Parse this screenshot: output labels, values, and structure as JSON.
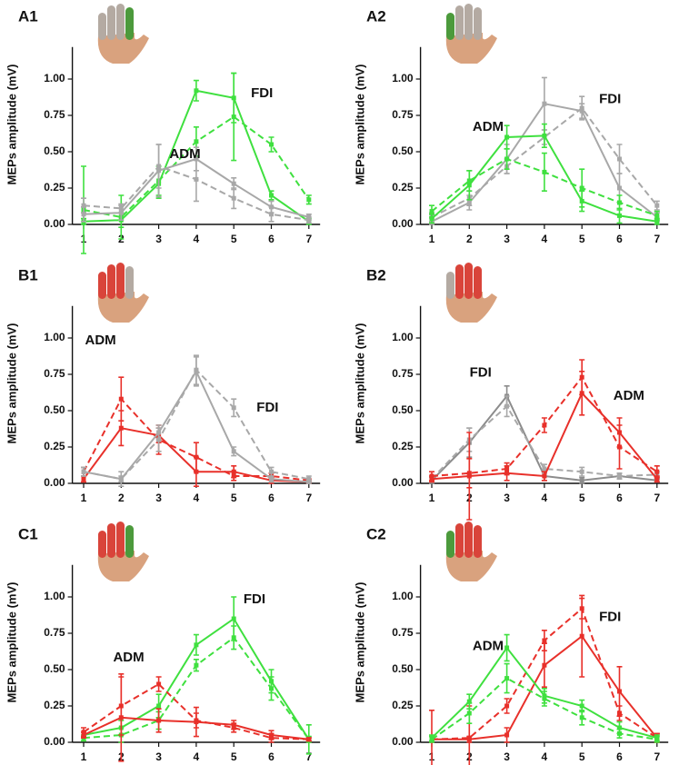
{
  "chart_data": [
    {
      "type": "line",
      "title": "A1",
      "ylabel": "MEPs amplitude (mV)",
      "x": [
        1,
        2,
        3,
        4,
        5,
        6,
        7
      ],
      "xlim": [
        0.7,
        7.3
      ],
      "xticks": [
        1,
        2,
        3,
        4,
        5,
        6,
        7
      ],
      "ylim": [
        0,
        1.22
      ],
      "yticks": [
        {
          "value": 0,
          "label": "0.00"
        },
        {
          "value": 0.25,
          "label": "0.25"
        },
        {
          "value": 0.5,
          "label": "0.50"
        },
        {
          "value": 0.75,
          "label": "0.75"
        },
        {
          "value": 1,
          "label": "1.00"
        }
      ],
      "labels": [
        {
          "text": "FDI",
          "color": "#3fe03f"
        },
        {
          "text": "ADM",
          "color": "#a8a8a8"
        }
      ],
      "series": [
        {
          "color": "#3fe03f",
          "dashed": false,
          "values": [
            0.02,
            0.03,
            0.28,
            0.92,
            0.87,
            0.2,
            0.02
          ],
          "errors": [
            0.02,
            0.05,
            0.1,
            0.07,
            0.17,
            0.03,
            0.02
          ]
        },
        {
          "color": "#3fe03f",
          "dashed": true,
          "values": [
            0.1,
            0.05,
            0.3,
            0.57,
            0.74,
            0.55,
            0.17
          ],
          "errors": [
            0.3,
            0.15,
            0.1,
            0.1,
            0.3,
            0.05,
            0.03
          ]
        },
        {
          "color": "#a8a8a8",
          "dashed": false,
          "values": [
            0.07,
            0.08,
            0.37,
            0.45,
            0.28,
            0.12,
            0.05
          ],
          "errors": [
            0.05,
            0.05,
            0.18,
            0.08,
            0.04,
            0.04,
            0.02
          ]
        },
        {
          "color": "#a8a8a8",
          "dashed": true,
          "values": [
            0.13,
            0.11,
            0.4,
            0.31,
            0.18,
            0.07,
            0.03
          ],
          "errors": [
            0.05,
            0.03,
            0.15,
            0.15,
            0.07,
            0.05,
            0.02
          ]
        }
      ]
    },
    {
      "type": "line",
      "title": "A2",
      "ylabel": "MEPs amplitude (mV)",
      "x": [
        1,
        2,
        3,
        4,
        5,
        6,
        7
      ],
      "xlim": [
        0.7,
        7.3
      ],
      "xticks": [
        1,
        2,
        3,
        4,
        5,
        6,
        7
      ],
      "ylim": [
        0,
        1.22
      ],
      "yticks": [
        {
          "value": 0,
          "label": "0.00"
        },
        {
          "value": 0.25,
          "label": "0.25"
        },
        {
          "value": 0.5,
          "label": "0.50"
        },
        {
          "value": 0.75,
          "label": "0.75"
        },
        {
          "value": 1,
          "label": "1.00"
        }
      ],
      "labels": [
        {
          "text": "FDI",
          "color": "#a8a8a8"
        },
        {
          "text": "ADM",
          "color": "#3fe03f"
        }
      ],
      "series": [
        {
          "color": "#a8a8a8",
          "dashed": false,
          "values": [
            0.02,
            0.15,
            0.45,
            0.83,
            0.78,
            0.25,
            0.05
          ],
          "errors": [
            0.02,
            0.05,
            0.1,
            0.18,
            0.05,
            0.1,
            0.03
          ]
        },
        {
          "color": "#a8a8a8",
          "dashed": true,
          "values": [
            0.05,
            0.18,
            0.4,
            0.6,
            0.8,
            0.45,
            0.13
          ],
          "errors": [
            0.03,
            0.05,
            0.05,
            0.05,
            0.08,
            0.1,
            0.03
          ]
        },
        {
          "color": "#3fe03f",
          "dashed": false,
          "values": [
            0.04,
            0.27,
            0.6,
            0.61,
            0.16,
            0.06,
            0.02
          ],
          "errors": [
            0.03,
            0.1,
            0.08,
            0.08,
            0.07,
            0.05,
            0.02
          ]
        },
        {
          "color": "#3fe03f",
          "dashed": true,
          "values": [
            0.09,
            0.3,
            0.45,
            0.36,
            0.25,
            0.15,
            0.06
          ],
          "errors": [
            0.04,
            0.07,
            0.07,
            0.13,
            0.13,
            0.05,
            0.03
          ]
        }
      ]
    },
    {
      "type": "line",
      "title": "B1",
      "ylabel": "MEPs amplitude (mV)",
      "x": [
        1,
        2,
        3,
        4,
        5,
        6,
        7
      ],
      "xlim": [
        0.7,
        7.3
      ],
      "xticks": [
        1,
        2,
        3,
        4,
        5,
        6,
        7
      ],
      "ylim": [
        0,
        1.22
      ],
      "yticks": [
        {
          "value": 0,
          "label": "0.00"
        },
        {
          "value": 0.25,
          "label": "0.25"
        },
        {
          "value": 0.5,
          "label": "0.50"
        },
        {
          "value": 0.75,
          "label": "0.75"
        },
        {
          "value": 1,
          "label": "1.00"
        }
      ],
      "labels": [
        {
          "text": "ADM",
          "color": "#e8302a"
        },
        {
          "text": "FDI",
          "color": "#a8a8a8"
        }
      ],
      "series": [
        {
          "color": "#e8302a",
          "dashed": false,
          "values": [
            0.03,
            0.38,
            0.33,
            0.08,
            0.08,
            0.02,
            0.01
          ],
          "errors": [
            0.02,
            0.12,
            0.05,
            0.1,
            0.04,
            0.02,
            0.01
          ]
        },
        {
          "color": "#e8302a",
          "dashed": true,
          "values": [
            0.08,
            0.58,
            0.3,
            0.18,
            0.05,
            0.05,
            0.02
          ],
          "errors": [
            0.03,
            0.15,
            0.1,
            0.1,
            0.03,
            0.02,
            0.01
          ]
        },
        {
          "color": "#a8a8a8",
          "dashed": false,
          "values": [
            0.08,
            0.03,
            0.35,
            0.77,
            0.22,
            0.03,
            0.01
          ],
          "errors": [
            0.03,
            0.02,
            0.05,
            0.1,
            0.03,
            0.02,
            0.01
          ]
        },
        {
          "color": "#a8a8a8",
          "dashed": true,
          "values": [
            0.08,
            0.03,
            0.3,
            0.78,
            0.52,
            0.08,
            0.03
          ],
          "errors": [
            0.03,
            0.05,
            0.08,
            0.1,
            0.06,
            0.03,
            0.02
          ]
        }
      ]
    },
    {
      "type": "line",
      "title": "B2",
      "ylabel": "MEPs amplitude (mV)",
      "x": [
        1,
        2,
        3,
        4,
        5,
        6,
        7
      ],
      "xlim": [
        0.7,
        7.3
      ],
      "xticks": [
        1,
        2,
        3,
        4,
        5,
        6,
        7
      ],
      "ylim": [
        0,
        1.22
      ],
      "yticks": [
        {
          "value": 0,
          "label": "0.00"
        },
        {
          "value": 0.25,
          "label": "0.25"
        },
        {
          "value": 0.5,
          "label": "0.50"
        },
        {
          "value": 0.75,
          "label": "0.75"
        },
        {
          "value": 1,
          "label": "1.00"
        }
      ],
      "labels": [
        {
          "text": "ADM",
          "color": "#8c8c8c"
        },
        {
          "text": "FDI",
          "color": "#e8302a"
        }
      ],
      "series": [
        {
          "color": "#8c8c8c",
          "dashed": false,
          "values": [
            0.02,
            0.28,
            0.6,
            0.05,
            0.02,
            0.05,
            0.02
          ],
          "errors": [
            0.02,
            0.1,
            0.07,
            0.03,
            0.02,
            0.02,
            0.01
          ]
        },
        {
          "color": "#a8a8a8",
          "dashed": true,
          "values": [
            0.03,
            0.3,
            0.53,
            0.1,
            0.08,
            0.05,
            0.06
          ],
          "errors": [
            0.02,
            0.08,
            0.07,
            0.03,
            0.03,
            0.02,
            0.02
          ]
        },
        {
          "color": "#e8302a",
          "dashed": false,
          "values": [
            0.03,
            0.05,
            0.07,
            0.05,
            0.62,
            0.35,
            0.03
          ],
          "errors": [
            0.02,
            0.3,
            0.05,
            0.03,
            0.15,
            0.1,
            0.02
          ]
        },
        {
          "color": "#e8302a",
          "dashed": true,
          "values": [
            0.05,
            0.07,
            0.1,
            0.4,
            0.73,
            0.25,
            0.08
          ],
          "errors": [
            0.03,
            0.1,
            0.04,
            0.05,
            0.12,
            0.15,
            0.04
          ]
        }
      ]
    },
    {
      "type": "line",
      "title": "C1",
      "ylabel": "MEPs amplitude (mV)",
      "x": [
        1,
        2,
        3,
        4,
        5,
        6,
        7
      ],
      "xlim": [
        0.7,
        7.3
      ],
      "xticks": [
        1,
        2,
        3,
        4,
        5,
        6,
        7
      ],
      "ylim": [
        0,
        1.22
      ],
      "yticks": [
        {
          "value": 0,
          "label": "0.00"
        },
        {
          "value": 0.25,
          "label": "0.25"
        },
        {
          "value": 0.5,
          "label": "0.50"
        },
        {
          "value": 0.75,
          "label": "0.75"
        },
        {
          "value": 1,
          "label": "1.00"
        }
      ],
      "labels": [
        {
          "text": "FDI",
          "color": "#3fe03f"
        },
        {
          "text": "ADM",
          "color": "#e8302a"
        }
      ],
      "series": [
        {
          "color": "#3fe03f",
          "dashed": false,
          "values": [
            0.05,
            0.1,
            0.25,
            0.67,
            0.85,
            0.42,
            0.02
          ],
          "errors": [
            0.02,
            0.05,
            0.08,
            0.07,
            0.15,
            0.08,
            0.1
          ]
        },
        {
          "color": "#3fe03f",
          "dashed": true,
          "values": [
            0.03,
            0.05,
            0.15,
            0.53,
            0.72,
            0.37,
            0.02
          ],
          "errors": [
            0.02,
            0.05,
            0.06,
            0.04,
            0.08,
            0.08,
            0.02
          ]
        },
        {
          "color": "#e8302a",
          "dashed": false,
          "values": [
            0.05,
            0.17,
            0.15,
            0.14,
            0.12,
            0.05,
            0.02
          ],
          "errors": [
            0.02,
            0.3,
            0.08,
            0.1,
            0.03,
            0.03,
            0.01
          ]
        },
        {
          "color": "#e8302a",
          "dashed": true,
          "values": [
            0.07,
            0.25,
            0.4,
            0.15,
            0.1,
            0.03,
            0.02
          ],
          "errors": [
            0.03,
            0.2,
            0.05,
            0.05,
            0.03,
            0.03,
            0.01
          ]
        }
      ]
    },
    {
      "type": "line",
      "title": "C2",
      "ylabel": "MEPs amplitude (mV)",
      "x": [
        1,
        2,
        3,
        4,
        5,
        6,
        7
      ],
      "xlim": [
        0.7,
        7.3
      ],
      "xticks": [
        1,
        2,
        3,
        4,
        5,
        6,
        7
      ],
      "ylim": [
        0,
        1.22
      ],
      "yticks": [
        {
          "value": 0,
          "label": "0.00"
        },
        {
          "value": 0.25,
          "label": "0.25"
        },
        {
          "value": 0.5,
          "label": "0.50"
        },
        {
          "value": 0.75,
          "label": "0.75"
        },
        {
          "value": 1,
          "label": "1.00"
        }
      ],
      "labels": [
        {
          "text": "FDI",
          "color": "#e8302a"
        },
        {
          "text": "ADM",
          "color": "#3fe03f"
        }
      ],
      "series": [
        {
          "color": "#e8302a",
          "dashed": false,
          "values": [
            0.02,
            0.02,
            0.05,
            0.53,
            0.73,
            0.35,
            0.03
          ],
          "errors": [
            0.2,
            0.02,
            0.05,
            0.15,
            0.28,
            0.17,
            0.03
          ]
        },
        {
          "color": "#e8302a",
          "dashed": true,
          "values": [
            0.02,
            0.03,
            0.25,
            0.7,
            0.92,
            0.2,
            0.03
          ],
          "errors": [
            0.02,
            0.22,
            0.05,
            0.07,
            0.07,
            0.05,
            0.03
          ]
        },
        {
          "color": "#3fe03f",
          "dashed": false,
          "values": [
            0.03,
            0.28,
            0.65,
            0.32,
            0.25,
            0.1,
            0.03
          ],
          "errors": [
            0.02,
            0.05,
            0.09,
            0.05,
            0.04,
            0.04,
            0.02
          ]
        },
        {
          "color": "#3fe03f",
          "dashed": true,
          "values": [
            0.02,
            0.2,
            0.44,
            0.3,
            0.17,
            0.06,
            0.02
          ],
          "errors": [
            0.02,
            0.07,
            0.1,
            0.05,
            0.05,
            0.03,
            0.02
          ]
        }
      ]
    }
  ]
}
